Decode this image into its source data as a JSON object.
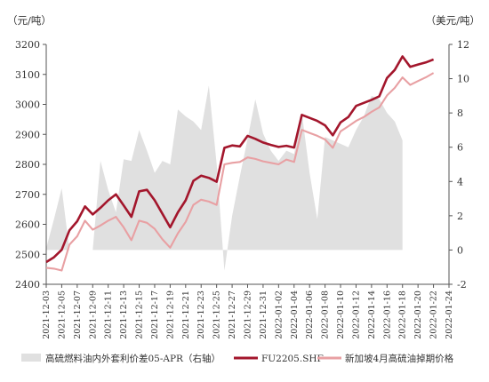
{
  "chart_data": {
    "type": "line",
    "left_unit": "（元/吨）",
    "right_unit": "（美元/吨）",
    "y_left": {
      "min": 2400,
      "max": 3200,
      "step": 100
    },
    "y_right": {
      "min": -2,
      "max": 12,
      "step": 2
    },
    "x_tick_labels": [
      "2021-12-03",
      "2021-12-05",
      "2021-12-07",
      "2021-12-09",
      "2021-12-11",
      "2021-12-13",
      "2021-12-15",
      "2021-12-17",
      "2021-12-19",
      "2021-12-21",
      "2021-12-23",
      "2021-12-25",
      "2021-12-27",
      "2021-12-29",
      "2021-12-31",
      "2022-01-02",
      "2022-01-04",
      "2022-01-06",
      "2022-01-08",
      "2022-01-10",
      "2022-01-12",
      "2022-01-14",
      "2022-01-16",
      "2022-01-18",
      "2022-01-20",
      "2022-01-22",
      "2022-01-24"
    ],
    "series": [
      {
        "name": "高硫燃料油内外套利价差05-APR（右轴）",
        "type": "area",
        "axis": "right",
        "color": "#e0e0e0",
        "points": [
          [
            "2021-12-03",
            0.1
          ],
          [
            "2021-12-04",
            1.8
          ],
          [
            "2021-12-05",
            3.6
          ],
          [
            "2021-12-06",
            0.0
          ],
          [
            "2021-12-07",
            0.0
          ],
          [
            "2021-12-08",
            0.0
          ],
          [
            "2021-12-09",
            0.0
          ],
          [
            "2021-12-10",
            5.2
          ],
          [
            "2021-12-11",
            3.5
          ],
          [
            "2021-12-12",
            2.2
          ],
          [
            "2021-12-13",
            5.3
          ],
          [
            "2021-12-14",
            5.2
          ],
          [
            "2021-12-15",
            7.0
          ],
          [
            "2021-12-16",
            5.8
          ],
          [
            "2021-12-17",
            4.5
          ],
          [
            "2021-12-18",
            5.2
          ],
          [
            "2021-12-19",
            5.0
          ],
          [
            "2021-12-20",
            8.2
          ],
          [
            "2021-12-21",
            7.8
          ],
          [
            "2021-12-22",
            7.5
          ],
          [
            "2021-12-23",
            7.0
          ],
          [
            "2021-12-24",
            9.6
          ],
          [
            "2021-12-25",
            5.0
          ],
          [
            "2021-12-26",
            -1.2
          ],
          [
            "2021-12-27",
            2.0
          ],
          [
            "2021-12-28",
            4.3
          ],
          [
            "2021-12-29",
            6.5
          ],
          [
            "2021-12-30",
            8.8
          ],
          [
            "2021-12-31",
            6.8
          ],
          [
            "2022-01-01",
            5.8
          ],
          [
            "2022-01-02",
            5.2
          ],
          [
            "2022-01-03",
            5.8
          ],
          [
            "2022-01-04",
            5.6
          ],
          [
            "2022-01-05",
            8.0
          ],
          [
            "2022-01-06",
            4.5
          ],
          [
            "2022-01-07",
            1.8
          ],
          [
            "2022-01-08",
            6.6
          ],
          [
            "2022-01-09",
            6.4
          ],
          [
            "2022-01-10",
            6.2
          ],
          [
            "2022-01-11",
            6.0
          ],
          [
            "2022-01-12",
            7.0
          ],
          [
            "2022-01-13",
            7.8
          ],
          [
            "2022-01-14",
            9.0
          ],
          [
            "2022-01-15",
            8.8
          ],
          [
            "2022-01-16",
            8.0
          ],
          [
            "2022-01-17",
            7.5
          ],
          [
            "2022-01-18",
            6.4
          ]
        ]
      },
      {
        "name": "FU2205.SHF",
        "type": "line",
        "axis": "left",
        "color": "#a3162c",
        "points": [
          [
            "2021-12-03",
            2474
          ],
          [
            "2021-12-04",
            2490
          ],
          [
            "2021-12-05",
            2515
          ],
          [
            "2021-12-06",
            2580
          ],
          [
            "2021-12-07",
            2610
          ],
          [
            "2021-12-08",
            2660
          ],
          [
            "2021-12-09",
            2633
          ],
          [
            "2021-12-10",
            2655
          ],
          [
            "2021-12-11",
            2680
          ],
          [
            "2021-12-12",
            2700
          ],
          [
            "2021-12-13",
            2663
          ],
          [
            "2021-12-14",
            2625
          ],
          [
            "2021-12-15",
            2710
          ],
          [
            "2021-12-16",
            2715
          ],
          [
            "2021-12-17",
            2680
          ],
          [
            "2021-12-18",
            2635
          ],
          [
            "2021-12-19",
            2590
          ],
          [
            "2021-12-20",
            2640
          ],
          [
            "2021-12-21",
            2680
          ],
          [
            "2021-12-22",
            2745
          ],
          [
            "2021-12-23",
            2762
          ],
          [
            "2021-12-24",
            2755
          ],
          [
            "2021-12-25",
            2742
          ],
          [
            "2021-12-26",
            2855
          ],
          [
            "2021-12-27",
            2863
          ],
          [
            "2021-12-28",
            2860
          ],
          [
            "2021-12-29",
            2895
          ],
          [
            "2021-12-30",
            2885
          ],
          [
            "2021-12-31",
            2873
          ],
          [
            "2022-01-01",
            2865
          ],
          [
            "2022-01-02",
            2858
          ],
          [
            "2022-01-03",
            2862
          ],
          [
            "2022-01-04",
            2856
          ],
          [
            "2022-01-05",
            2965
          ],
          [
            "2022-01-06",
            2955
          ],
          [
            "2022-01-07",
            2945
          ],
          [
            "2022-01-08",
            2930
          ],
          [
            "2022-01-09",
            2897
          ],
          [
            "2022-01-10",
            2940
          ],
          [
            "2022-01-11",
            2958
          ],
          [
            "2022-01-12",
            2995
          ],
          [
            "2022-01-13",
            3005
          ],
          [
            "2022-01-14",
            3015
          ],
          [
            "2022-01-15",
            3027
          ],
          [
            "2022-01-16",
            3088
          ],
          [
            "2022-01-17",
            3115
          ],
          [
            "2022-01-18",
            3160
          ],
          [
            "2022-01-19",
            3125
          ],
          [
            "2022-01-20",
            3133
          ],
          [
            "2022-01-21",
            3140
          ],
          [
            "2022-01-22",
            3150
          ]
        ]
      },
      {
        "name": "新加坡4月高硫油掉期价格",
        "type": "line",
        "axis": "left",
        "color": "#e8a0a3",
        "points": [
          [
            "2021-12-03",
            2455
          ],
          [
            "2021-12-04",
            2452
          ],
          [
            "2021-12-05",
            2446
          ],
          [
            "2021-12-06",
            2532
          ],
          [
            "2021-12-07",
            2560
          ],
          [
            "2021-12-08",
            2612
          ],
          [
            "2021-12-09",
            2582
          ],
          [
            "2021-12-10",
            2596
          ],
          [
            "2021-12-11",
            2612
          ],
          [
            "2021-12-12",
            2625
          ],
          [
            "2021-12-13",
            2590
          ],
          [
            "2021-12-14",
            2547
          ],
          [
            "2021-12-15",
            2612
          ],
          [
            "2021-12-16",
            2605
          ],
          [
            "2021-12-17",
            2585
          ],
          [
            "2021-12-18",
            2550
          ],
          [
            "2021-12-19",
            2522
          ],
          [
            "2021-12-20",
            2570
          ],
          [
            "2021-12-21",
            2608
          ],
          [
            "2021-12-22",
            2665
          ],
          [
            "2021-12-23",
            2682
          ],
          [
            "2021-12-24",
            2676
          ],
          [
            "2021-12-25",
            2665
          ],
          [
            "2021-12-26",
            2800
          ],
          [
            "2021-12-27",
            2805
          ],
          [
            "2021-12-28",
            2808
          ],
          [
            "2021-12-29",
            2823
          ],
          [
            "2021-12-30",
            2818
          ],
          [
            "2021-12-31",
            2810
          ],
          [
            "2022-01-01",
            2805
          ],
          [
            "2022-01-02",
            2800
          ],
          [
            "2022-01-03",
            2816
          ],
          [
            "2022-01-04",
            2808
          ],
          [
            "2022-01-05",
            2915
          ],
          [
            "2022-01-06",
            2905
          ],
          [
            "2022-01-07",
            2895
          ],
          [
            "2022-01-08",
            2883
          ],
          [
            "2022-01-09",
            2855
          ],
          [
            "2022-01-10",
            2910
          ],
          [
            "2022-01-11",
            2927
          ],
          [
            "2022-01-12",
            2945
          ],
          [
            "2022-01-13",
            2958
          ],
          [
            "2022-01-14",
            2975
          ],
          [
            "2022-01-15",
            2990
          ],
          [
            "2022-01-16",
            3030
          ],
          [
            "2022-01-17",
            3055
          ],
          [
            "2022-01-18",
            3090
          ],
          [
            "2022-01-19",
            3065
          ],
          [
            "2022-01-20",
            3078
          ],
          [
            "2022-01-21",
            3090
          ],
          [
            "2022-01-22",
            3105
          ]
        ]
      }
    ],
    "legend_position": "bottom",
    "grid": false
  }
}
